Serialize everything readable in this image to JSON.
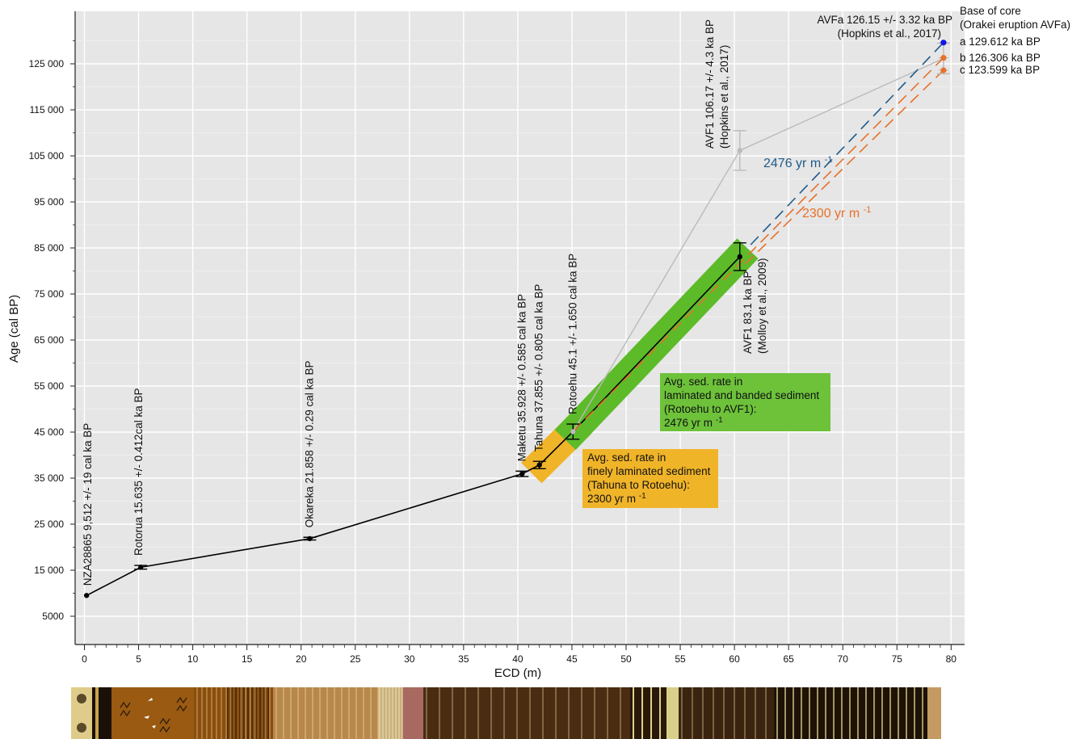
{
  "chart_data": {
    "type": "line",
    "xlabel": "ECD (m)",
    "ylabel": "Age (cal BP)",
    "xlim": [
      -1,
      81
    ],
    "ylim": [
      -1500,
      138000
    ],
    "x_ticks": [
      0,
      5,
      10,
      15,
      20,
      25,
      30,
      35,
      40,
      45,
      50,
      55,
      60,
      65,
      70,
      75,
      80
    ],
    "y_ticks": [
      5000,
      15000,
      25000,
      35000,
      45000,
      55000,
      65000,
      75000,
      85000,
      95000,
      105000,
      115000,
      125000
    ],
    "y_tick_labels": [
      "5000",
      "15 000",
      "25 000",
      "35 000",
      "45 000",
      "55 000",
      "65 000",
      "75 000",
      "85 000",
      "95 000",
      "105 000",
      "115 000",
      "125 000"
    ],
    "grid": true,
    "series": [
      {
        "type": "line",
        "color": "#000000",
        "points": [
          {
            "x": 0.2,
            "y": 9512,
            "err": 0,
            "label": "NZA28865 9,512 +/- 19 cal ka BP"
          },
          {
            "x": 5.2,
            "y": 15635,
            "err": 412,
            "label": "Rotorua 15.635 +/- 0.412cal  ka BP"
          },
          {
            "x": 20.8,
            "y": 21858,
            "err": 290,
            "label": "Okareka 21.858 +/- 0.29 cal ka BP"
          },
          {
            "x": 40.4,
            "y": 35928,
            "err": 585,
            "label": "Maketu 35.928 +/- 0.585 cal ka BP"
          },
          {
            "x": 42.0,
            "y": 37855,
            "err": 805,
            "label": "Tahuna 37.855 +/- 0.805 cal ka BP"
          },
          {
            "x": 45.1,
            "y": 45100,
            "err": 1650,
            "label": "Rotoehu 45.1 +/- 1.650 cal ka BP"
          },
          {
            "x": 60.5,
            "y": 83100,
            "err": 3000,
            "label": "AVF1 83.1 ka BP (Molloy et al., 2009)"
          }
        ]
      },
      {
        "type": "line",
        "color": "#bbbbbb",
        "points": [
          {
            "x": 45.1,
            "y": 45100
          },
          {
            "x": 60.5,
            "y": 106170,
            "err": 4300,
            "label": "AVF1 106.17 +/- 4.3 ka BP (Hopkins et al., 2017)"
          },
          {
            "x": 79.3,
            "y": 126150,
            "err": 3320
          }
        ]
      },
      {
        "type": "dashed",
        "color": "#1f5a8a",
        "name": "2476 yr m",
        "x": [
          61.5,
          79.3
        ],
        "y": [
          85700,
          129612
        ]
      },
      {
        "type": "dashed",
        "color": "#e8702a",
        "x": [
          45.1,
          79.3
        ],
        "y": [
          45100,
          126306
        ]
      },
      {
        "type": "dashed",
        "color": "#e8702a",
        "name": "2300 yr m",
        "x": [
          61.0,
          79.3
        ],
        "y": [
          81500,
          123599
        ]
      }
    ],
    "base_of_core": {
      "header_1": "Base of core",
      "header_2": "(Orakei eruption AVFa)",
      "avfa_label_1": "AVFa 126.15 +/- 3.32 ka BP",
      "avfa_label_2": "(Hopkins et al., 2017)",
      "points": [
        {
          "x": 79.3,
          "y": 129612,
          "label": "a 129.612 ka BP",
          "color": "#1515e6"
        },
        {
          "x": 79.3,
          "y": 126306,
          "label": "b 126.306 ka BP",
          "color": "#e8702a"
        },
        {
          "x": 79.3,
          "y": 123599,
          "label": "c 123.599 ka BP",
          "color": "#e8702a"
        }
      ]
    },
    "bands": [
      {
        "name": "green",
        "color": "#5dbb2a",
        "x": [
          45.1,
          60.5
        ],
        "y": [
          45100,
          83100
        ]
      },
      {
        "name": "yellow",
        "color": "#f0b429",
        "x": [
          42.0,
          45.1
        ],
        "y": [
          37855,
          45100
        ]
      }
    ],
    "rate_labels": [
      {
        "text": "2476 yr m",
        "sup": "-1",
        "color": "#1f5a8a"
      },
      {
        "text": "2300 yr m",
        "sup": "-1",
        "color": "#e8702a"
      }
    ],
    "boxes": [
      {
        "color": "#6dc23a",
        "lines": [
          "Avg. sed. rate in",
          "laminated and banded sediment",
          "(Rotoehu to AVF1):"
        ],
        "rate": "2476 yr m",
        "sup": "-1"
      },
      {
        "color": "#f0b429",
        "lines": [
          "Avg. sed. rate in",
          "finely laminated sediment",
          "(Tahuna to Rotoehu):"
        ],
        "rate": "2300 yr m",
        "sup": "-1"
      }
    ]
  }
}
